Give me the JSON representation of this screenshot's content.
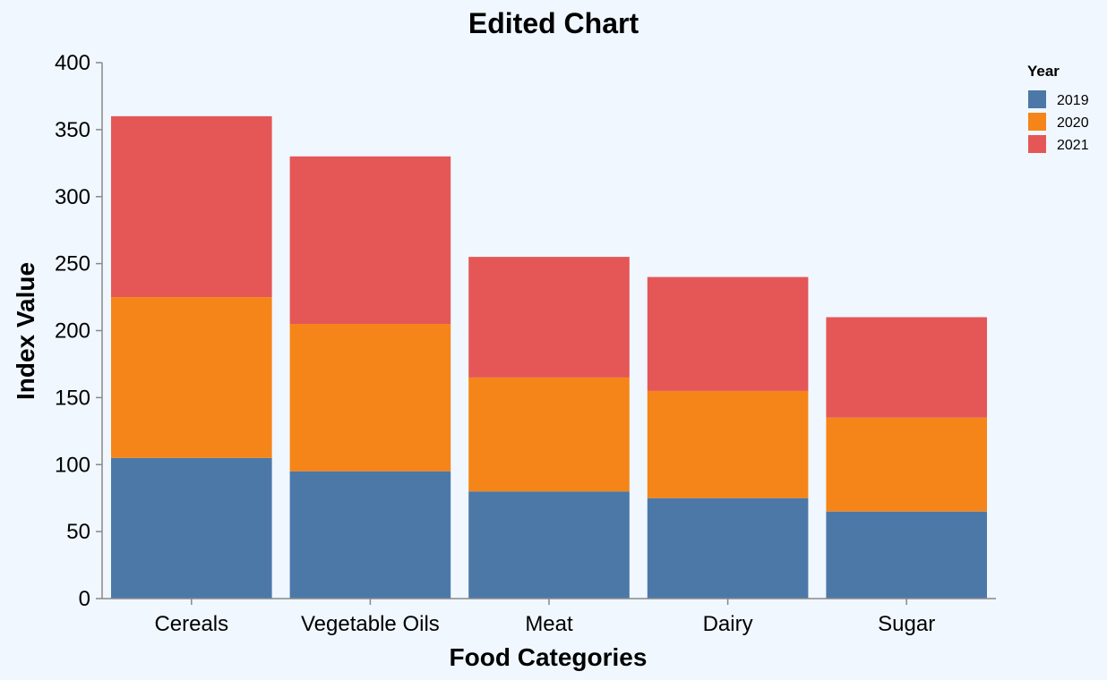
{
  "chart_data": {
    "type": "bar",
    "stacked": true,
    "title": "Edited Chart",
    "xlabel": "Food Categories",
    "ylabel": "Index Value",
    "categories": [
      "Cereals",
      "Vegetable Oils",
      "Meat",
      "Dairy",
      "Sugar"
    ],
    "series": [
      {
        "name": "2019",
        "color": "#4c78a8",
        "values": [
          105,
          95,
          80,
          75,
          65
        ]
      },
      {
        "name": "2020",
        "color": "#f58518",
        "values": [
          120,
          110,
          85,
          80,
          70
        ]
      },
      {
        "name": "2021",
        "color": "#e45756",
        "values": [
          135,
          125,
          90,
          85,
          75
        ]
      }
    ],
    "ylim": [
      0,
      400
    ],
    "yticks": [
      0,
      50,
      100,
      150,
      200,
      250,
      300,
      350,
      400
    ],
    "grid": false,
    "legend": {
      "title": "Year",
      "placement": "right"
    }
  }
}
